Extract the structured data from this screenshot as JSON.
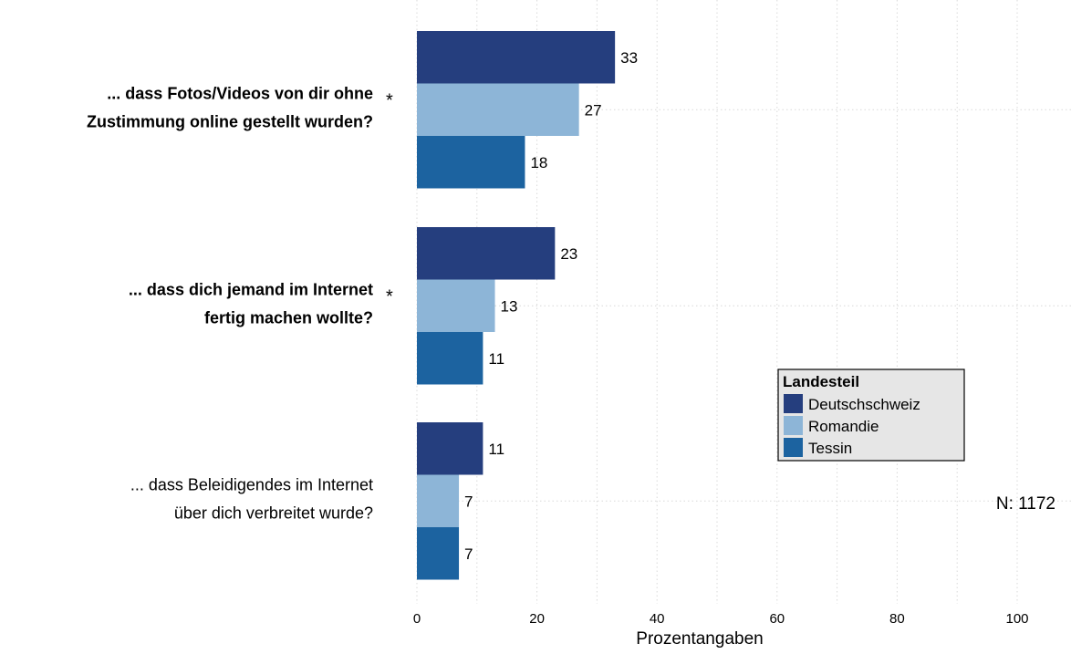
{
  "chart_data": {
    "type": "bar",
    "orientation": "horizontal",
    "categories": [
      {
        "lines": [
          "... dass Fotos/Videos von dir ohne",
          "Zustimmung online gestellt wurden?"
        ],
        "bold": true,
        "significant": true
      },
      {
        "lines": [
          "... dass dich jemand im Internet",
          "fertig machen wollte?"
        ],
        "bold": true,
        "significant": true
      },
      {
        "lines": [
          "... dass Beleidigendes im Internet",
          "über dich verbreitet wurde?"
        ],
        "bold": false,
        "significant": false
      }
    ],
    "series": [
      {
        "name": "Deutschschweiz",
        "color": "#253e7e",
        "values": [
          33,
          23,
          11
        ]
      },
      {
        "name": "Romandie",
        "color": "#8db5d7",
        "values": [
          27,
          13,
          7
        ]
      },
      {
        "name": "Tessin",
        "color": "#1c63a0",
        "values": [
          18,
          11,
          7
        ]
      }
    ],
    "significance_marker": "*",
    "xlabel": "Prozentangaben",
    "xlim": [
      0,
      100
    ],
    "xticks": [
      0,
      20,
      40,
      60,
      80,
      100
    ],
    "legend": {
      "title": "Landesteil",
      "position": "right"
    },
    "note": "N: 1172",
    "grid": true
  }
}
